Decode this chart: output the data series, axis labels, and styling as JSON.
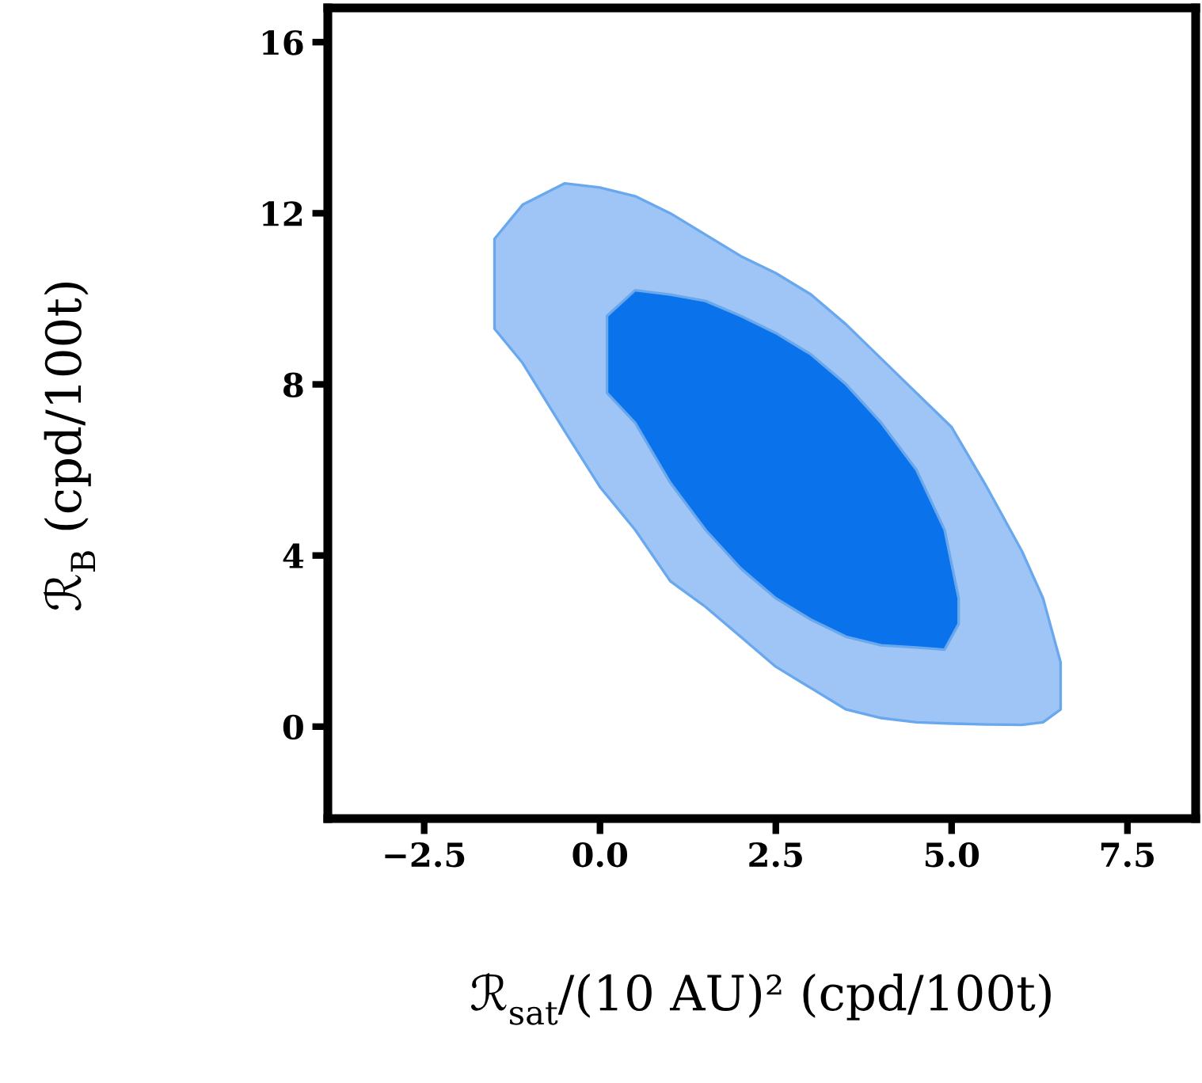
{
  "chart_data": {
    "type": "area",
    "xlabel": "ℛ$_{sat}$/(10 AU)² (cpd/100t)",
    "ylabel": "ℛ$_{B}$ (cpd/100t)",
    "xlim": [
      -3.87,
      8.47
    ],
    "ylim": [
      -2.15,
      16.8
    ],
    "xticks": [
      {
        "value": -2.5,
        "label": "−2.5"
      },
      {
        "value": 0,
        "label": "0.0"
      },
      {
        "value": 2.5,
        "label": "2.5"
      },
      {
        "value": 5,
        "label": "5.0"
      },
      {
        "value": 7.5,
        "label": "7.5"
      }
    ],
    "yticks": [
      0,
      4,
      8,
      12,
      16
    ],
    "grid": false,
    "series": [
      {
        "color": "#9ec5f5",
        "x": [
          -1.5,
          -1.1,
          -0.5,
          0,
          0.5,
          1,
          1.5,
          2,
          2.5,
          3,
          3.5,
          4,
          4.5,
          5,
          5.5,
          6,
          6.3,
          6.55,
          6.55,
          6.3,
          6,
          5.5,
          5,
          4.5,
          4,
          3.5,
          3,
          2.5,
          2,
          1.5,
          1,
          0.5,
          0,
          -0.5,
          -1.1,
          -1.5
        ],
        "values": [
          11.4,
          12.2,
          12.7,
          12.6,
          12.4,
          12.0,
          11.5,
          11.0,
          10.6,
          10.1,
          9.4,
          8.6,
          7.8,
          7.0,
          5.6,
          4.1,
          3.0,
          1.5,
          0.4,
          0.1,
          0.04,
          0.05,
          0.07,
          0.1,
          0.2,
          0.4,
          0.9,
          1.4,
          2.1,
          2.8,
          3.4,
          4.6,
          5.6,
          6.9,
          8.5,
          9.3
        ]
      },
      {
        "color": "#0a72ea",
        "x": [
          0.1,
          0.5,
          1,
          1.5,
          2,
          2.5,
          3,
          3.5,
          4,
          4.5,
          4.9,
          5.1,
          5.1,
          4.9,
          4.5,
          4,
          3.5,
          3,
          2.5,
          2,
          1.5,
          1,
          0.5,
          0.1
        ],
        "values": [
          9.6,
          10.2,
          10.1,
          9.95,
          9.6,
          9.2,
          8.7,
          8.0,
          7.1,
          6.0,
          4.6,
          3.0,
          2.4,
          1.8,
          1.85,
          1.9,
          2.1,
          2.5,
          3.0,
          3.7,
          4.6,
          5.7,
          7.1,
          7.8
        ]
      }
    ]
  }
}
